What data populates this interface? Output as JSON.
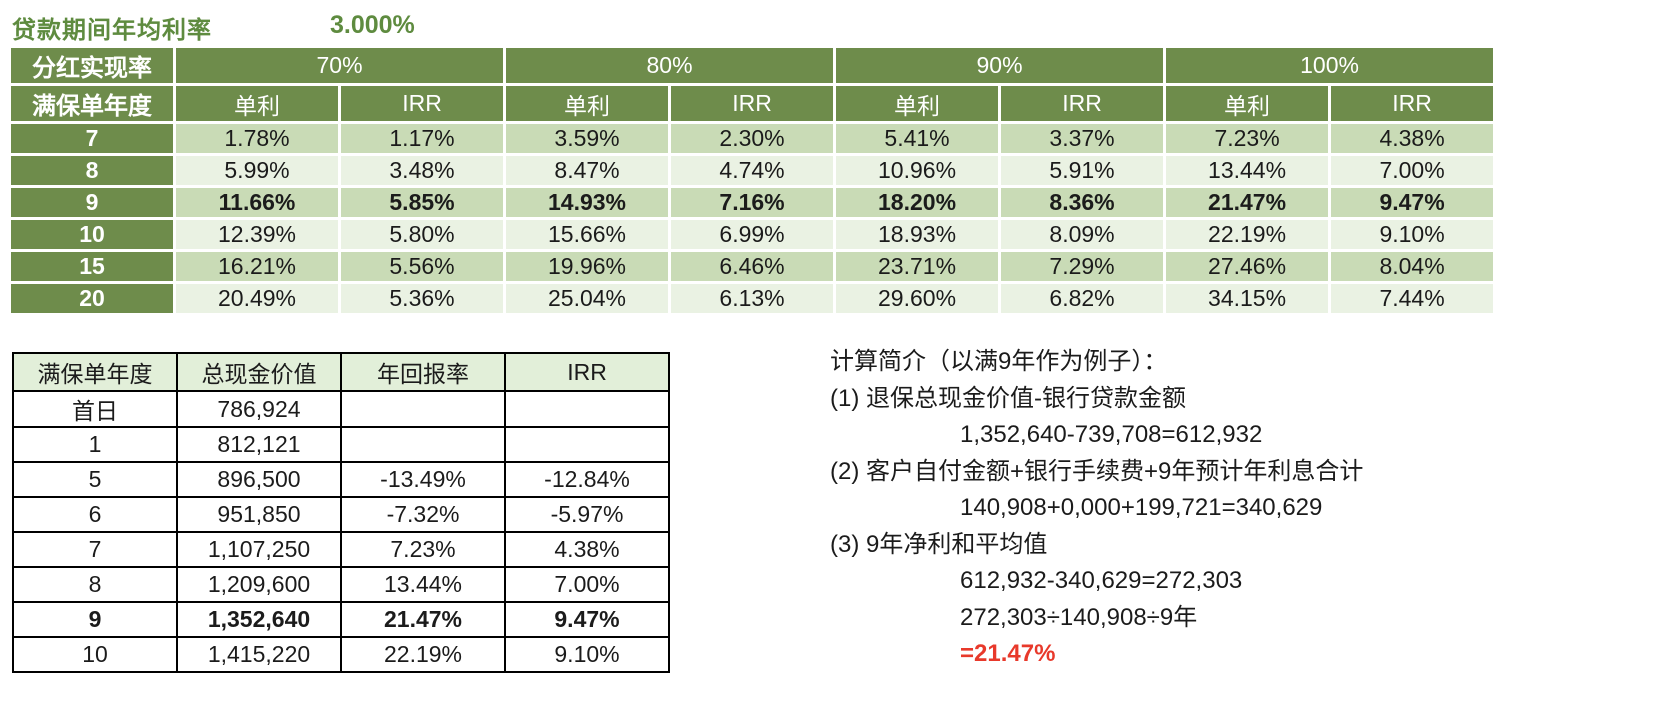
{
  "header": {
    "label": "贷款期间年均利率",
    "value": "3.000%"
  },
  "colors": {
    "header_green": "#6e8c4b",
    "band_green": "#c9dbb6",
    "band_light_green": "#eaf2e3",
    "cash_header_green": "#e2efd9",
    "title_green": "#5e8b3f",
    "highlight_red": "#e8392b"
  },
  "rate_table": {
    "corner_top": "分红实现率",
    "corner_bottom": "满保单年度",
    "groups": [
      "70%",
      "80%",
      "90%",
      "100%"
    ],
    "sub_headers": [
      "单利",
      "IRR"
    ],
    "rows": [
      {
        "year": "7",
        "bold": false,
        "values": [
          "1.78%",
          "1.17%",
          "3.59%",
          "2.30%",
          "5.41%",
          "3.37%",
          "7.23%",
          "4.38%"
        ]
      },
      {
        "year": "8",
        "bold": false,
        "values": [
          "5.99%",
          "3.48%",
          "8.47%",
          "4.74%",
          "10.96%",
          "5.91%",
          "13.44%",
          "7.00%"
        ]
      },
      {
        "year": "9",
        "bold": true,
        "values": [
          "11.66%",
          "5.85%",
          "14.93%",
          "7.16%",
          "18.20%",
          "8.36%",
          "21.47%",
          "9.47%"
        ]
      },
      {
        "year": "10",
        "bold": false,
        "values": [
          "12.39%",
          "5.80%",
          "15.66%",
          "6.99%",
          "18.93%",
          "8.09%",
          "22.19%",
          "9.10%"
        ]
      },
      {
        "year": "15",
        "bold": false,
        "values": [
          "16.21%",
          "5.56%",
          "19.96%",
          "6.46%",
          "23.71%",
          "7.29%",
          "27.46%",
          "8.04%"
        ]
      },
      {
        "year": "20",
        "bold": false,
        "values": [
          "20.49%",
          "5.36%",
          "25.04%",
          "6.13%",
          "29.60%",
          "6.82%",
          "34.15%",
          "7.44%"
        ]
      }
    ]
  },
  "cash_table": {
    "headers": [
      "满保单年度",
      "总现金价值",
      "年回报率",
      "IRR"
    ],
    "rows": [
      {
        "bold": false,
        "cells": [
          "首日",
          "786,924",
          "",
          ""
        ]
      },
      {
        "bold": false,
        "cells": [
          "1",
          "812,121",
          "",
          ""
        ]
      },
      {
        "bold": false,
        "cells": [
          "5",
          "896,500",
          "-13.49%",
          "-12.84%"
        ]
      },
      {
        "bold": false,
        "cells": [
          "6",
          "951,850",
          "-7.32%",
          "-5.97%"
        ]
      },
      {
        "bold": false,
        "cells": [
          "7",
          "1,107,250",
          "7.23%",
          "4.38%"
        ]
      },
      {
        "bold": false,
        "cells": [
          "8",
          "1,209,600",
          "13.44%",
          "7.00%"
        ]
      },
      {
        "bold": true,
        "cells": [
          "9",
          "1,352,640",
          "21.47%",
          "9.47%"
        ]
      },
      {
        "bold": false,
        "cells": [
          "10",
          "1,415,220",
          "22.19%",
          "9.10%"
        ]
      }
    ]
  },
  "notes": {
    "title": "计算简介（以满9年作为例子）：",
    "lines": [
      {
        "text": "(1) 退保总现金价值-银行贷款金额",
        "indent": false,
        "red": false
      },
      {
        "text": "1,352,640-739,708=612,932",
        "indent": true,
        "red": false
      },
      {
        "text": "(2) 客户自付金额+银行手续费+9年预计年利息合计",
        "indent": false,
        "red": false
      },
      {
        "text": "140,908+0,000+199,721=340,629",
        "indent": true,
        "red": false
      },
      {
        "text": "(3) 9年净利和平均值",
        "indent": false,
        "red": false
      },
      {
        "text": "612,932-340,629=272,303",
        "indent": true,
        "red": false
      },
      {
        "text": "272,303÷140,908÷9年",
        "indent": true,
        "red": false
      },
      {
        "text": "=21.47%",
        "indent": true,
        "red": true
      }
    ]
  }
}
